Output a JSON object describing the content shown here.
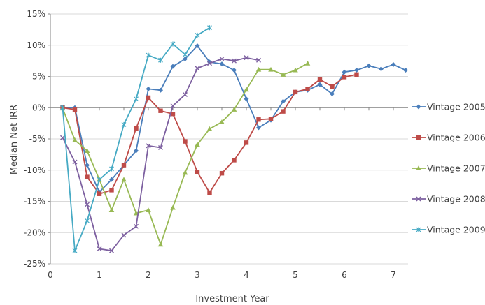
{
  "chart_data": {
    "type": "line",
    "xlabel": "Investment Year",
    "ylabel": "Median Net IRR",
    "xlim": [
      0,
      7.3
    ],
    "ylim": [
      -25,
      15
    ],
    "x_ticks": [
      0,
      1,
      2,
      3,
      4,
      5,
      6,
      7
    ],
    "y_ticks": [
      -25,
      -20,
      -15,
      -10,
      -5,
      0,
      5,
      10,
      15
    ],
    "y_tick_labels": [
      "-25%",
      "-20%",
      "-15%",
      "-10%",
      "-5%",
      "0%",
      "5%",
      "10%",
      "15%"
    ],
    "grid": true,
    "legend_position": "right",
    "series": [
      {
        "name": "Vintage 2005",
        "color": "#4a7ebb",
        "marker": "diamond",
        "x": [
          0.25,
          0.5,
          0.75,
          1,
          1.25,
          1.5,
          1.75,
          2,
          2.25,
          2.5,
          2.75,
          3,
          3.25,
          3.5,
          3.75,
          4,
          4.25,
          4.5,
          4.75,
          5,
          5.25,
          5.5,
          5.75,
          6,
          6.25,
          6.5,
          6.75,
          7,
          7.25
        ],
        "y": [
          0,
          0,
          -9.2,
          -13.5,
          -11.5,
          -9.2,
          -6.9,
          3.0,
          2.8,
          6.6,
          7.8,
          9.9,
          7.3,
          7.0,
          6.0,
          1.4,
          -3.2,
          -2.0,
          1.0,
          2.5,
          2.8,
          3.7,
          2.2,
          5.7,
          6.0,
          6.7,
          6.2,
          6.9,
          6.0
        ]
      },
      {
        "name": "Vintage 2006",
        "color": "#be4b48",
        "marker": "square",
        "x": [
          0.25,
          0.5,
          0.75,
          1,
          1.25,
          1.5,
          1.75,
          2,
          2.25,
          2.5,
          2.75,
          3,
          3.25,
          3.5,
          3.75,
          4,
          4.25,
          4.5,
          4.75,
          5,
          5.25,
          5.5,
          5.75,
          6,
          6.25
        ],
        "y": [
          0,
          -0.3,
          -11.1,
          -13.8,
          -13.2,
          -9.2,
          -3.3,
          1.6,
          -0.5,
          -1.0,
          -5.4,
          -10.3,
          -13.6,
          -10.5,
          -8.4,
          -5.6,
          -1.9,
          -1.8,
          -0.6,
          2.5,
          3.0,
          4.5,
          3.4,
          4.9,
          5.3
        ]
      },
      {
        "name": "Vintage 2007",
        "color": "#98b954",
        "marker": "triangle",
        "x": [
          0.25,
          0.5,
          0.75,
          1,
          1.25,
          1.5,
          1.75,
          2,
          2.25,
          2.5,
          2.75,
          3,
          3.25,
          3.5,
          3.75,
          4,
          4.25,
          4.5,
          4.75,
          5,
          5.25
        ],
        "y": [
          -0.1,
          -5.2,
          -6.9,
          -11.5,
          -16.4,
          -11.5,
          -16.9,
          -16.4,
          -21.9,
          -16.0,
          -10.4,
          -5.9,
          -3.4,
          -2.3,
          -0.3,
          2.9,
          6.1,
          6.1,
          5.3,
          6.0,
          7.1
        ]
      },
      {
        "name": "Vintage 2008",
        "color": "#7d60a0",
        "marker": "x",
        "x": [
          0.25,
          0.5,
          0.75,
          1,
          1.25,
          1.5,
          1.75,
          2,
          2.25,
          2.5,
          2.75,
          3,
          3.25,
          3.5,
          3.75,
          4,
          4.25
        ],
        "y": [
          -4.8,
          -8.7,
          -15.5,
          -22.6,
          -22.9,
          -20.4,
          -19.0,
          -6.1,
          -6.4,
          0.3,
          2.1,
          6.3,
          7.1,
          7.8,
          7.5,
          8.0,
          7.6
        ]
      },
      {
        "name": "Vintage 2009",
        "color": "#46aac4",
        "marker": "star",
        "x": [
          0.25,
          0.5,
          0.75,
          1,
          1.25,
          1.5,
          1.75,
          2,
          2.25,
          2.5,
          2.75,
          3,
          3.25
        ],
        "y": [
          0,
          -22.9,
          -18.1,
          -11.5,
          -9.8,
          -2.7,
          1.4,
          8.4,
          7.6,
          10.2,
          8.5,
          11.6,
          12.8
        ]
      }
    ]
  }
}
